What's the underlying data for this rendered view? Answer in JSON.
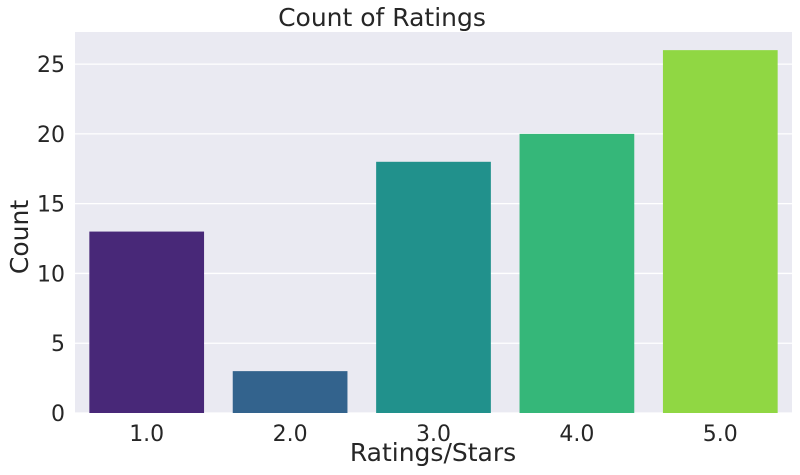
{
  "chart_data": {
    "type": "bar",
    "title": "Count of Ratings",
    "xlabel": "Ratings/Stars",
    "ylabel": "Count",
    "categories": [
      "1.0",
      "2.0",
      "3.0",
      "4.0",
      "5.0"
    ],
    "values": [
      13,
      3,
      18,
      20,
      26
    ],
    "colors": [
      "#482878",
      "#33638d",
      "#21918c",
      "#35b779",
      "#90d743"
    ],
    "ylim": [
      0,
      27.3
    ],
    "yticks": [
      "0",
      "5",
      "10",
      "15",
      "20",
      "25"
    ],
    "grid": true,
    "background": "#eaeaf2",
    "gridColor": "#ffffff"
  }
}
